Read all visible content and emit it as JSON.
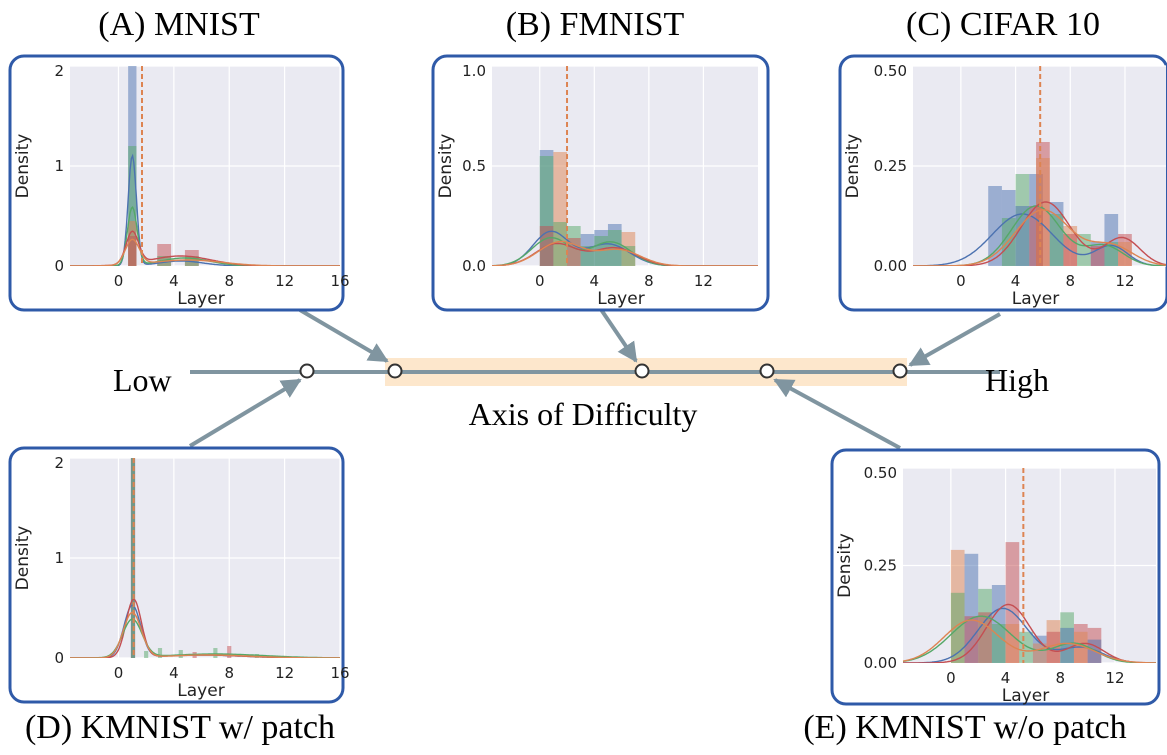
{
  "axis": {
    "low_label": "Low",
    "high_label": "High",
    "title": "Axis of Difficulty",
    "colors": {
      "line": "#8095a0",
      "band": "#fde7cc",
      "arrow": "#8095a0",
      "panel_border": "#2f5aa8"
    }
  },
  "series_colors": [
    "#4c72b0",
    "#dd8452",
    "#55a868",
    "#c44e52"
  ],
  "marker_color": "#dd8452",
  "chart_data": [
    {
      "id": "A",
      "title": "(A) MNIST",
      "type": "bar",
      "xlabel": "Layer",
      "ylabel": "Density",
      "xticks": [
        "0",
        "4",
        "8",
        "12",
        "16"
      ],
      "xtick_values": [
        0,
        4,
        8,
        12,
        16
      ],
      "yticks": [
        "0",
        "1",
        "2"
      ],
      "ytick_values": [
        0,
        1,
        2
      ],
      "xlim": [
        -3.5,
        16
      ],
      "ylim": [
        0,
        2
      ],
      "marker_x": 1.7,
      "bars": [
        {
          "x": 1.0,
          "w": 0.6,
          "s": 0,
          "v": 2.0
        },
        {
          "x": 1.0,
          "w": 0.6,
          "s": 2,
          "v": 1.2
        },
        {
          "x": 1.0,
          "w": 0.6,
          "s": 1,
          "v": 0.45
        },
        {
          "x": 1.0,
          "w": 0.6,
          "s": 3,
          "v": 0.3
        },
        {
          "x": 3.3,
          "w": 1.0,
          "s": 3,
          "v": 0.22
        },
        {
          "x": 3.3,
          "w": 1.0,
          "s": 2,
          "v": 0.1
        },
        {
          "x": 5.3,
          "w": 1.0,
          "s": 3,
          "v": 0.16
        },
        {
          "x": 5.3,
          "w": 1.0,
          "s": 2,
          "v": 0.1
        }
      ],
      "curves": [
        {
          "s": 0,
          "comps": [
            [
              1.0,
              1.1,
              0.3
            ],
            [
              4.5,
              0.05,
              1.6
            ]
          ]
        },
        {
          "s": 2,
          "comps": [
            [
              1.0,
              0.58,
              0.35
            ],
            [
              4.8,
              0.08,
              1.8
            ]
          ]
        },
        {
          "s": 3,
          "comps": [
            [
              1.0,
              0.32,
              0.45
            ],
            [
              4.5,
              0.1,
              2.2
            ]
          ]
        },
        {
          "s": 1,
          "comps": [
            [
              1.0,
              0.25,
              0.5
            ],
            [
              5.0,
              0.06,
              2.5
            ]
          ]
        }
      ]
    },
    {
      "id": "B",
      "title": "(B) FMNIST",
      "type": "bar",
      "xlabel": "Layer",
      "ylabel": "Density",
      "xticks": [
        "0",
        "4",
        "8",
        "12"
      ],
      "xtick_values": [
        0,
        4,
        8,
        12
      ],
      "yticks": [
        "0.0",
        "0.5",
        "1.0"
      ],
      "ytick_values": [
        0,
        0.5,
        1.0
      ],
      "xlim": [
        -3.5,
        16
      ],
      "ylim": [
        0,
        1.0
      ],
      "marker_x": 2.0,
      "bars": [
        {
          "x": 0.5,
          "w": 1.0,
          "s": 0,
          "v": 0.58
        },
        {
          "x": 0.5,
          "w": 1.0,
          "s": 2,
          "v": 0.55
        },
        {
          "x": 0.5,
          "w": 1.0,
          "s": 3,
          "v": 0.2
        },
        {
          "x": 1.5,
          "w": 1.0,
          "s": 1,
          "v": 0.57
        },
        {
          "x": 1.5,
          "w": 1.0,
          "s": 2,
          "v": 0.22
        },
        {
          "x": 2.5,
          "w": 1.0,
          "s": 2,
          "v": 0.2
        },
        {
          "x": 2.5,
          "w": 1.0,
          "s": 3,
          "v": 0.14
        },
        {
          "x": 3.5,
          "w": 1.0,
          "s": 0,
          "v": 0.16
        },
        {
          "x": 3.5,
          "w": 1.0,
          "s": 2,
          "v": 0.1
        },
        {
          "x": 4.5,
          "w": 1.0,
          "s": 0,
          "v": 0.18
        },
        {
          "x": 4.5,
          "w": 1.0,
          "s": 2,
          "v": 0.15
        },
        {
          "x": 5.5,
          "w": 1.0,
          "s": 0,
          "v": 0.21
        },
        {
          "x": 5.5,
          "w": 1.0,
          "s": 2,
          "v": 0.18
        },
        {
          "x": 6.5,
          "w": 1.0,
          "s": 1,
          "v": 0.17
        },
        {
          "x": 6.5,
          "w": 1.0,
          "s": 2,
          "v": 0.1
        }
      ],
      "curves": [
        {
          "s": 0,
          "comps": [
            [
              0.8,
              0.17,
              1.3
            ],
            [
              5.0,
              0.11,
              1.6
            ]
          ]
        },
        {
          "s": 2,
          "comps": [
            [
              0.8,
              0.14,
              1.4
            ],
            [
              5.2,
              0.12,
              1.5
            ]
          ]
        },
        {
          "s": 3,
          "comps": [
            [
              1.2,
              0.11,
              1.5
            ],
            [
              5.5,
              0.09,
              1.6
            ]
          ]
        },
        {
          "s": 1,
          "comps": [
            [
              1.5,
              0.12,
              1.6
            ],
            [
              5.8,
              0.08,
              1.6
            ]
          ]
        }
      ]
    },
    {
      "id": "C",
      "title": "(C) CIFAR 10",
      "type": "bar",
      "xlabel": "Layer",
      "ylabel": "Density",
      "xticks": [
        "0",
        "4",
        "8",
        "12"
      ],
      "xtick_values": [
        0,
        4,
        8,
        12
      ],
      "yticks": [
        "0.00",
        "0.25",
        "0.50"
      ],
      "ytick_values": [
        0,
        0.25,
        0.5
      ],
      "xlim": [
        -3.5,
        15
      ],
      "ylim": [
        0,
        0.5
      ],
      "marker_x": 5.8,
      "bars": [
        {
          "x": 2.5,
          "w": 1.0,
          "s": 0,
          "v": 0.2
        },
        {
          "x": 3.5,
          "w": 1.0,
          "s": 0,
          "v": 0.19
        },
        {
          "x": 3.5,
          "w": 1.0,
          "s": 2,
          "v": 0.12
        },
        {
          "x": 4.5,
          "w": 1.0,
          "s": 2,
          "v": 0.23
        },
        {
          "x": 4.5,
          "w": 1.0,
          "s": 0,
          "v": 0.15
        },
        {
          "x": 5.5,
          "w": 1.0,
          "s": 0,
          "v": 0.23
        },
        {
          "x": 5.5,
          "w": 1.0,
          "s": 3,
          "v": 0.15
        },
        {
          "x": 6.0,
          "w": 1.0,
          "s": 3,
          "v": 0.31
        },
        {
          "x": 6.0,
          "w": 1.0,
          "s": 1,
          "v": 0.27
        },
        {
          "x": 7.0,
          "w": 1.0,
          "s": 0,
          "v": 0.16
        },
        {
          "x": 7.0,
          "w": 1.0,
          "s": 2,
          "v": 0.13
        },
        {
          "x": 8.0,
          "w": 1.0,
          "s": 1,
          "v": 0.1
        },
        {
          "x": 8.0,
          "w": 1.0,
          "s": 3,
          "v": 0.08
        },
        {
          "x": 9.0,
          "w": 1.0,
          "s": 2,
          "v": 0.08
        },
        {
          "x": 10.0,
          "w": 1.0,
          "s": 0,
          "v": 0.06
        },
        {
          "x": 10.0,
          "w": 1.0,
          "s": 3,
          "v": 0.05
        },
        {
          "x": 11.0,
          "w": 1.0,
          "s": 0,
          "v": 0.13
        },
        {
          "x": 11.0,
          "w": 1.0,
          "s": 2,
          "v": 0.06
        },
        {
          "x": 12.0,
          "w": 1.0,
          "s": 3,
          "v": 0.08
        },
        {
          "x": 12.0,
          "w": 1.0,
          "s": 1,
          "v": 0.06
        }
      ],
      "curves": [
        {
          "s": 0,
          "comps": [
            [
              4.5,
              0.13,
              2.2
            ],
            [
              11.0,
              0.05,
              1.2
            ]
          ]
        },
        {
          "s": 2,
          "comps": [
            [
              5.5,
              0.15,
              1.8
            ],
            [
              10.5,
              0.05,
              1.4
            ]
          ]
        },
        {
          "s": 3,
          "comps": [
            [
              6.2,
              0.16,
              1.8
            ],
            [
              11.8,
              0.07,
              1.3
            ]
          ]
        },
        {
          "s": 1,
          "comps": [
            [
              6.0,
              0.14,
              2.0
            ],
            [
              11.0,
              0.05,
              1.6
            ]
          ]
        }
      ]
    },
    {
      "id": "D",
      "title": "(D) KMNIST w/ patch",
      "type": "bar",
      "xlabel": "Layer",
      "ylabel": "Density",
      "xticks": [
        "0",
        "4",
        "8",
        "12",
        "16"
      ],
      "xtick_values": [
        0,
        4,
        8,
        12,
        16
      ],
      "yticks": [
        "0",
        "1",
        "2"
      ],
      "ytick_values": [
        0,
        1,
        2
      ],
      "xlim": [
        -3.5,
        16
      ],
      "ylim": [
        0,
        2
      ],
      "marker_x": 1.1,
      "bars": [
        {
          "x": 1.05,
          "w": 0.3,
          "s": 3,
          "v": 2.0
        },
        {
          "x": 1.05,
          "w": 0.3,
          "s": 0,
          "v": 2.0
        },
        {
          "x": 1.05,
          "w": 0.3,
          "s": 2,
          "v": 2.0
        },
        {
          "x": 2.0,
          "w": 0.3,
          "s": 2,
          "v": 0.07
        },
        {
          "x": 3.0,
          "w": 0.3,
          "s": 2,
          "v": 0.1
        },
        {
          "x": 4.5,
          "w": 0.3,
          "s": 2,
          "v": 0.08
        },
        {
          "x": 5.5,
          "w": 0.3,
          "s": 3,
          "v": 0.06
        },
        {
          "x": 7.0,
          "w": 0.3,
          "s": 2,
          "v": 0.1
        },
        {
          "x": 8.0,
          "w": 0.3,
          "s": 3,
          "v": 0.12
        },
        {
          "x": 10.0,
          "w": 0.3,
          "s": 2,
          "v": 0.04
        }
      ],
      "curves": [
        {
          "s": 0,
          "comps": [
            [
              1.0,
              0.52,
              0.6
            ],
            [
              6.0,
              0.03,
              3.0
            ]
          ]
        },
        {
          "s": 3,
          "comps": [
            [
              1.1,
              0.58,
              0.55
            ],
            [
              6.0,
              0.03,
              3.0
            ]
          ]
        },
        {
          "s": 2,
          "comps": [
            [
              1.0,
              0.38,
              0.7
            ],
            [
              7.0,
              0.04,
              3.5
            ]
          ]
        },
        {
          "s": 1,
          "comps": [
            [
              1.0,
              0.45,
              0.65
            ],
            [
              6.5,
              0.03,
              3.0
            ]
          ]
        }
      ]
    },
    {
      "id": "E",
      "title": "(E) KMNIST w/o patch",
      "type": "bar",
      "xlabel": "Layer",
      "ylabel": "Density",
      "xticks": [
        "0",
        "4",
        "8",
        "12"
      ],
      "xtick_values": [
        0,
        4,
        8,
        12
      ],
      "yticks": [
        "0.00",
        "0.25",
        "0.50"
      ],
      "ytick_values": [
        0,
        0.25,
        0.5
      ],
      "xlim": [
        -3.5,
        15
      ],
      "ylim": [
        0,
        0.5
      ],
      "marker_x": 5.3,
      "bars": [
        {
          "x": 0.5,
          "w": 1.0,
          "s": 1,
          "v": 0.29
        },
        {
          "x": 0.5,
          "w": 1.0,
          "s": 2,
          "v": 0.18
        },
        {
          "x": 1.5,
          "w": 1.0,
          "s": 0,
          "v": 0.28
        },
        {
          "x": 1.5,
          "w": 1.0,
          "s": 3,
          "v": 0.12
        },
        {
          "x": 2.5,
          "w": 1.0,
          "s": 2,
          "v": 0.19
        },
        {
          "x": 2.5,
          "w": 1.0,
          "s": 3,
          "v": 0.13
        },
        {
          "x": 3.5,
          "w": 1.0,
          "s": 0,
          "v": 0.2
        },
        {
          "x": 3.5,
          "w": 1.0,
          "s": 2,
          "v": 0.1
        },
        {
          "x": 4.5,
          "w": 1.0,
          "s": 3,
          "v": 0.31
        },
        {
          "x": 4.5,
          "w": 1.0,
          "s": 1,
          "v": 0.1
        },
        {
          "x": 5.5,
          "w": 1.0,
          "s": 2,
          "v": 0.08
        },
        {
          "x": 6.5,
          "w": 1.0,
          "s": 0,
          "v": 0.07
        },
        {
          "x": 6.5,
          "w": 1.0,
          "s": 1,
          "v": 0.05
        },
        {
          "x": 7.5,
          "w": 1.0,
          "s": 1,
          "v": 0.11
        },
        {
          "x": 7.5,
          "w": 1.0,
          "s": 3,
          "v": 0.08
        },
        {
          "x": 8.5,
          "w": 1.0,
          "s": 2,
          "v": 0.13
        },
        {
          "x": 8.5,
          "w": 1.0,
          "s": 0,
          "v": 0.09
        },
        {
          "x": 9.5,
          "w": 1.0,
          "s": 3,
          "v": 0.1
        },
        {
          "x": 9.5,
          "w": 1.0,
          "s": 1,
          "v": 0.08
        },
        {
          "x": 10.5,
          "w": 1.0,
          "s": 3,
          "v": 0.09
        },
        {
          "x": 10.5,
          "w": 1.0,
          "s": 0,
          "v": 0.06
        }
      ],
      "curves": [
        {
          "s": 0,
          "comps": [
            [
              3.8,
              0.14,
              1.8
            ],
            [
              9.5,
              0.04,
              1.6
            ]
          ]
        },
        {
          "s": 3,
          "comps": [
            [
              4.2,
              0.15,
              1.6
            ],
            [
              9.8,
              0.05,
              1.4
            ]
          ]
        },
        {
          "s": 2,
          "comps": [
            [
              2.2,
              0.12,
              2.2
            ],
            [
              9.0,
              0.05,
              1.6
            ]
          ]
        },
        {
          "s": 1,
          "comps": [
            [
              1.5,
              0.11,
              2.0
            ],
            [
              8.5,
              0.05,
              2.0
            ]
          ]
        }
      ]
    }
  ]
}
